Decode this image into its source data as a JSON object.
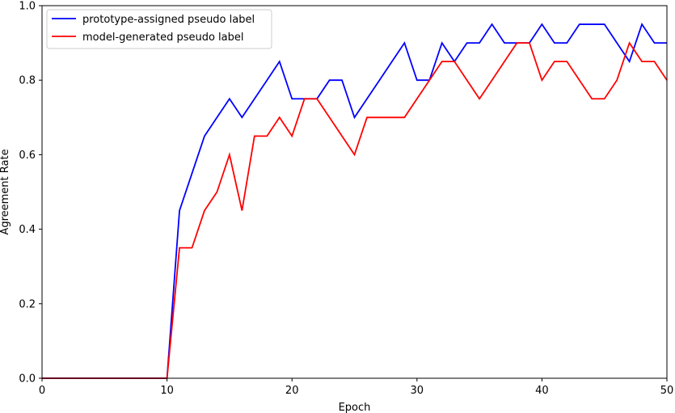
{
  "chart_data": {
    "type": "line",
    "title": "",
    "xlabel": "Epoch",
    "ylabel": "Agreement Rate",
    "xlim": [
      0,
      50
    ],
    "ylim": [
      0.0,
      1.0
    ],
    "xticks": [
      "0",
      "10",
      "20",
      "30",
      "40",
      "50"
    ],
    "yticks": [
      "0.0",
      "0.2",
      "0.4",
      "0.6",
      "0.8",
      "1.0"
    ],
    "grid": false,
    "legend_position": "upper-left",
    "x": [
      0,
      1,
      2,
      3,
      4,
      5,
      6,
      7,
      8,
      9,
      10,
      11,
      12,
      13,
      14,
      15,
      16,
      17,
      18,
      19,
      20,
      21,
      22,
      23,
      24,
      25,
      26,
      27,
      28,
      29,
      30,
      31,
      32,
      33,
      34,
      35,
      36,
      37,
      38,
      39,
      40,
      41,
      42,
      43,
      44,
      45,
      46,
      47,
      48,
      49,
      50
    ],
    "series": [
      {
        "name": "prototype-assigned pseudo label",
        "color": "#0000ff",
        "values": [
          0,
          0,
          0,
          0,
          0,
          0,
          0,
          0,
          0,
          0,
          0,
          0.45,
          0.55,
          0.65,
          0.7,
          0.75,
          0.7,
          0.75,
          0.8,
          0.85,
          0.75,
          0.75,
          0.75,
          0.8,
          0.8,
          0.7,
          0.75,
          0.8,
          0.85,
          0.9,
          0.8,
          0.8,
          0.9,
          0.85,
          0.9,
          0.9,
          0.95,
          0.9,
          0.9,
          0.9,
          0.95,
          0.9,
          0.9,
          0.95,
          0.95,
          0.95,
          0.9,
          0.85,
          0.95,
          0.9,
          0.9
        ]
      },
      {
        "name": "model-generated pseudo label",
        "color": "#ff0000",
        "values": [
          0,
          0,
          0,
          0,
          0,
          0,
          0,
          0,
          0,
          0,
          0,
          0.35,
          0.35,
          0.45,
          0.5,
          0.6,
          0.45,
          0.65,
          0.65,
          0.7,
          0.65,
          0.75,
          0.75,
          0.7,
          0.65,
          0.6,
          0.7,
          0.7,
          0.7,
          0.7,
          0.75,
          0.8,
          0.85,
          0.85,
          0.8,
          0.75,
          0.8,
          0.85,
          0.9,
          0.9,
          0.8,
          0.85,
          0.85,
          0.8,
          0.75,
          0.75,
          0.8,
          0.9,
          0.85,
          0.85,
          0.8
        ]
      }
    ]
  }
}
